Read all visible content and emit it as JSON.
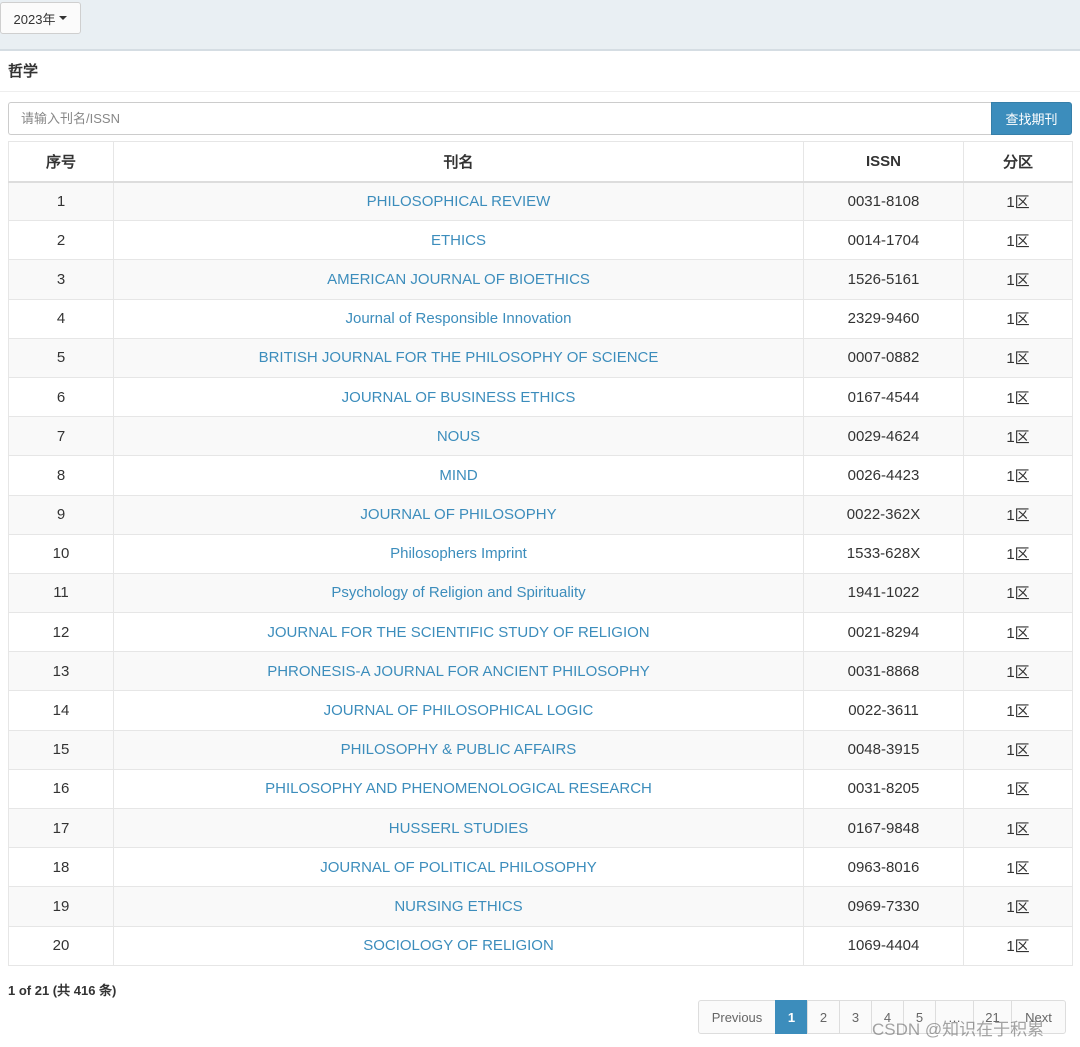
{
  "header": {
    "year_label": "2023年",
    "section_title": "哲学"
  },
  "search": {
    "placeholder": "请输入刊名/ISSN",
    "value": "",
    "button_label": "查找期刊"
  },
  "table": {
    "columns": [
      "序号",
      "刊名",
      "ISSN",
      "分区"
    ],
    "rows": [
      {
        "no": "1",
        "name": "PHILOSOPHICAL REVIEW",
        "issn": "0031-8108",
        "zone": "1区"
      },
      {
        "no": "2",
        "name": "ETHICS",
        "issn": "0014-1704",
        "zone": "1区"
      },
      {
        "no": "3",
        "name": "AMERICAN JOURNAL OF BIOETHICS",
        "issn": "1526-5161",
        "zone": "1区"
      },
      {
        "no": "4",
        "name": "Journal of Responsible Innovation",
        "issn": "2329-9460",
        "zone": "1区"
      },
      {
        "no": "5",
        "name": "BRITISH JOURNAL FOR THE PHILOSOPHY OF SCIENCE",
        "issn": "0007-0882",
        "zone": "1区"
      },
      {
        "no": "6",
        "name": "JOURNAL OF BUSINESS ETHICS",
        "issn": "0167-4544",
        "zone": "1区"
      },
      {
        "no": "7",
        "name": "NOUS",
        "issn": "0029-4624",
        "zone": "1区"
      },
      {
        "no": "8",
        "name": "MIND",
        "issn": "0026-4423",
        "zone": "1区"
      },
      {
        "no": "9",
        "name": "JOURNAL OF PHILOSOPHY",
        "issn": "0022-362X",
        "zone": "1区"
      },
      {
        "no": "10",
        "name": "Philosophers Imprint",
        "issn": "1533-628X",
        "zone": "1区"
      },
      {
        "no": "11",
        "name": "Psychology of Religion and Spirituality",
        "issn": "1941-1022",
        "zone": "1区"
      },
      {
        "no": "12",
        "name": "JOURNAL FOR THE SCIENTIFIC STUDY OF RELIGION",
        "issn": "0021-8294",
        "zone": "1区"
      },
      {
        "no": "13",
        "name": "PHRONESIS-A JOURNAL FOR ANCIENT PHILOSOPHY",
        "issn": "0031-8868",
        "zone": "1区"
      },
      {
        "no": "14",
        "name": "JOURNAL OF PHILOSOPHICAL LOGIC",
        "issn": "0022-3611",
        "zone": "1区"
      },
      {
        "no": "15",
        "name": "PHILOSOPHY & PUBLIC AFFAIRS",
        "issn": "0048-3915",
        "zone": "1区"
      },
      {
        "no": "16",
        "name": "PHILOSOPHY AND PHENOMENOLOGICAL RESEARCH",
        "issn": "0031-8205",
        "zone": "1区"
      },
      {
        "no": "17",
        "name": "HUSSERL STUDIES",
        "issn": "0167-9848",
        "zone": "1区"
      },
      {
        "no": "18",
        "name": "JOURNAL OF POLITICAL PHILOSOPHY",
        "issn": "0963-8016",
        "zone": "1区"
      },
      {
        "no": "19",
        "name": "NURSING ETHICS",
        "issn": "0969-7330",
        "zone": "1区"
      },
      {
        "no": "20",
        "name": "SOCIOLOGY OF RELIGION",
        "issn": "1069-4404",
        "zone": "1区"
      }
    ]
  },
  "footer": {
    "page_info": "1 of 21 (共 416 条)",
    "pagination": [
      {
        "label": "Previous",
        "active": false
      },
      {
        "label": "1",
        "active": true
      },
      {
        "label": "2",
        "active": false
      },
      {
        "label": "3",
        "active": false
      },
      {
        "label": "4",
        "active": false
      },
      {
        "label": "5",
        "active": false
      },
      {
        "label": "…",
        "active": false
      },
      {
        "label": "21",
        "active": false
      },
      {
        "label": "Next",
        "active": false
      }
    ],
    "watermark": "CSDN @知识在于积累"
  },
  "colors": {
    "accent": "#3c8dbc",
    "topbar_bg": "#e9eff3",
    "stripe": "#f9f9f9"
  }
}
